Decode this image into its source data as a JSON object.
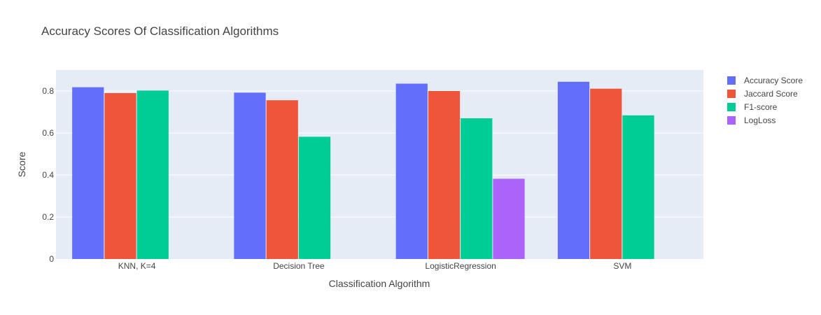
{
  "chart_data": {
    "type": "bar",
    "title": "Accuracy Scores Of Classification Algorithms",
    "xlabel": "Classification Algorithm",
    "ylabel": "Score",
    "categories": [
      "KNN, K=4",
      "Decision Tree",
      "LogisticRegression",
      "SVM"
    ],
    "ylim": [
      0,
      0.9
    ],
    "yticks": [
      0,
      0.2,
      0.4,
      0.6,
      0.8
    ],
    "ytick_labels": [
      "0",
      "0.2",
      "0.4",
      "0.6",
      "0.8"
    ],
    "grid": true,
    "legend_position": "top-right",
    "series": [
      {
        "name": "Accuracy Score",
        "color": "#636efa",
        "values": [
          0.818,
          0.792,
          0.835,
          0.844
        ]
      },
      {
        "name": "Jaccard Score",
        "color": "#ef553b",
        "values": [
          0.79,
          0.756,
          0.8,
          0.811
        ]
      },
      {
        "name": "F1-score",
        "color": "#00cc96",
        "values": [
          0.802,
          0.582,
          0.67,
          0.684
        ]
      },
      {
        "name": "LogLoss",
        "color": "#ab63fa",
        "values": [
          null,
          null,
          0.382,
          null
        ]
      }
    ]
  }
}
